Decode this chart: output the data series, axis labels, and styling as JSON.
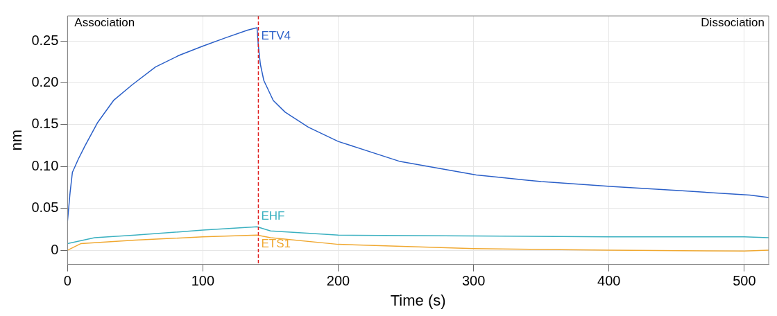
{
  "chart_data": {
    "type": "line",
    "xlabel": "Time (s)",
    "ylabel": "nm",
    "xlim": [
      0,
      518
    ],
    "xticks": [
      0,
      100,
      200,
      300,
      400,
      500
    ],
    "ylim": [
      -0.017,
      0.28
    ],
    "yticks": [
      0,
      0.05,
      {
        "value": 0.1,
        "label": "0.10"
      },
      0.15,
      {
        "value": 0.2,
        "label": "0.20"
      },
      0.25
    ],
    "grid": true,
    "legend": false,
    "marker": "none",
    "line_style": "solid",
    "annotations": [
      "Association",
      "Dissociation"
    ],
    "ref_lines": [
      {
        "axis": "x",
        "value": 141,
        "color": "#e02020",
        "line_style": "dashed"
      }
    ],
    "series": [
      {
        "name": "ETV4",
        "color": "#2a5fc8",
        "x": [
          0,
          1.9,
          3.6,
          8,
          13,
          22,
          34,
          48,
          65,
          82.6,
          100,
          117,
          133,
          140,
          141,
          142.5,
          145,
          152,
          160.8,
          178,
          200,
          245.8,
          302,
          350,
          403,
          454,
          504,
          518
        ],
        "values": [
          0.035,
          0.069,
          0.093,
          0.109,
          0.125,
          0.152,
          0.179,
          0.198,
          0.219,
          0.233,
          0.244,
          0.254,
          0.263,
          0.266,
          0.244,
          0.222,
          0.203,
          0.179,
          0.165,
          0.147,
          0.13,
          0.106,
          0.09,
          0.082,
          0.076,
          0.071,
          0.066,
          0.063
        ]
      },
      {
        "name": "EHF",
        "color": "#3ab0c0",
        "x": [
          0,
          20,
          50,
          100,
          140,
          150,
          200,
          300,
          400,
          500,
          518
        ],
        "values": [
          0.008,
          0.015,
          0.018,
          0.024,
          0.028,
          0.023,
          0.018,
          0.017,
          0.016,
          0.016,
          0.015
        ]
      },
      {
        "name": "ETS1",
        "color": "#f0a830",
        "x": [
          0,
          10,
          50,
          100,
          140,
          150,
          200,
          300,
          400,
          500,
          518
        ],
        "values": [
          0.0,
          0.008,
          0.012,
          0.016,
          0.018,
          0.015,
          0.007,
          0.002,
          0.0,
          -0.001,
          0.0
        ]
      }
    ]
  }
}
